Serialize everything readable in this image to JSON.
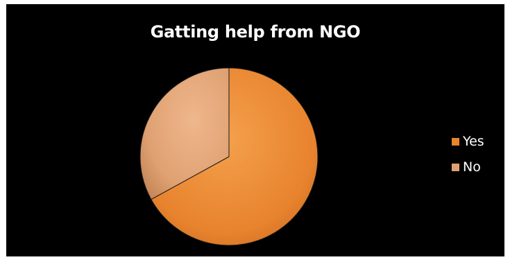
{
  "chart_data": {
    "type": "pie",
    "title": "Gatting help from NGO",
    "categories": [
      "Yes",
      "No"
    ],
    "values": [
      67,
      33
    ],
    "colors": [
      "#e8832e",
      "#dfa172"
    ],
    "legend_position": "right",
    "background": "#000000"
  }
}
